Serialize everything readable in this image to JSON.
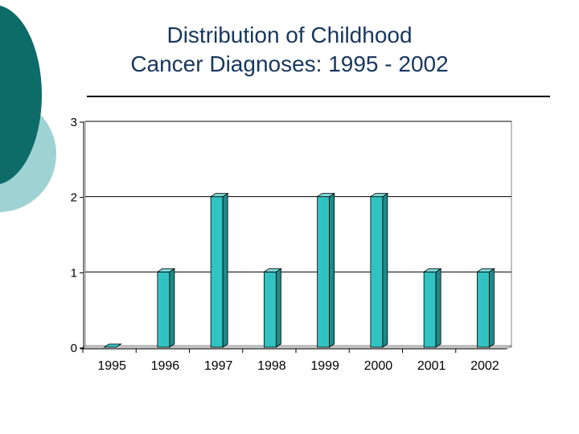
{
  "slide": {
    "title_line1": "Distribution of Childhood",
    "title_line2": "Cancer Diagnoses: 1995 - 2002"
  },
  "colors": {
    "title": "#17375e",
    "decor_dark": "#0d6b68",
    "decor_light": "#9fd3d3",
    "bar_front": "#33c2c2",
    "bar_side": "#1f8a8a",
    "bar_top": "#7fdede"
  },
  "chart_data": {
    "type": "bar",
    "title": "Distribution of Childhood Cancer Diagnoses: 1995 - 2002",
    "xlabel": "",
    "ylabel": "",
    "categories": [
      "1995",
      "1996",
      "1997",
      "1998",
      "1999",
      "2000",
      "2001",
      "2002"
    ],
    "values": [
      0,
      1,
      2,
      1,
      2,
      2,
      1,
      1
    ],
    "ylim": [
      0,
      3
    ],
    "yticks": [
      "0",
      "1",
      "2",
      "3"
    ],
    "grid": true,
    "legend": "none"
  }
}
